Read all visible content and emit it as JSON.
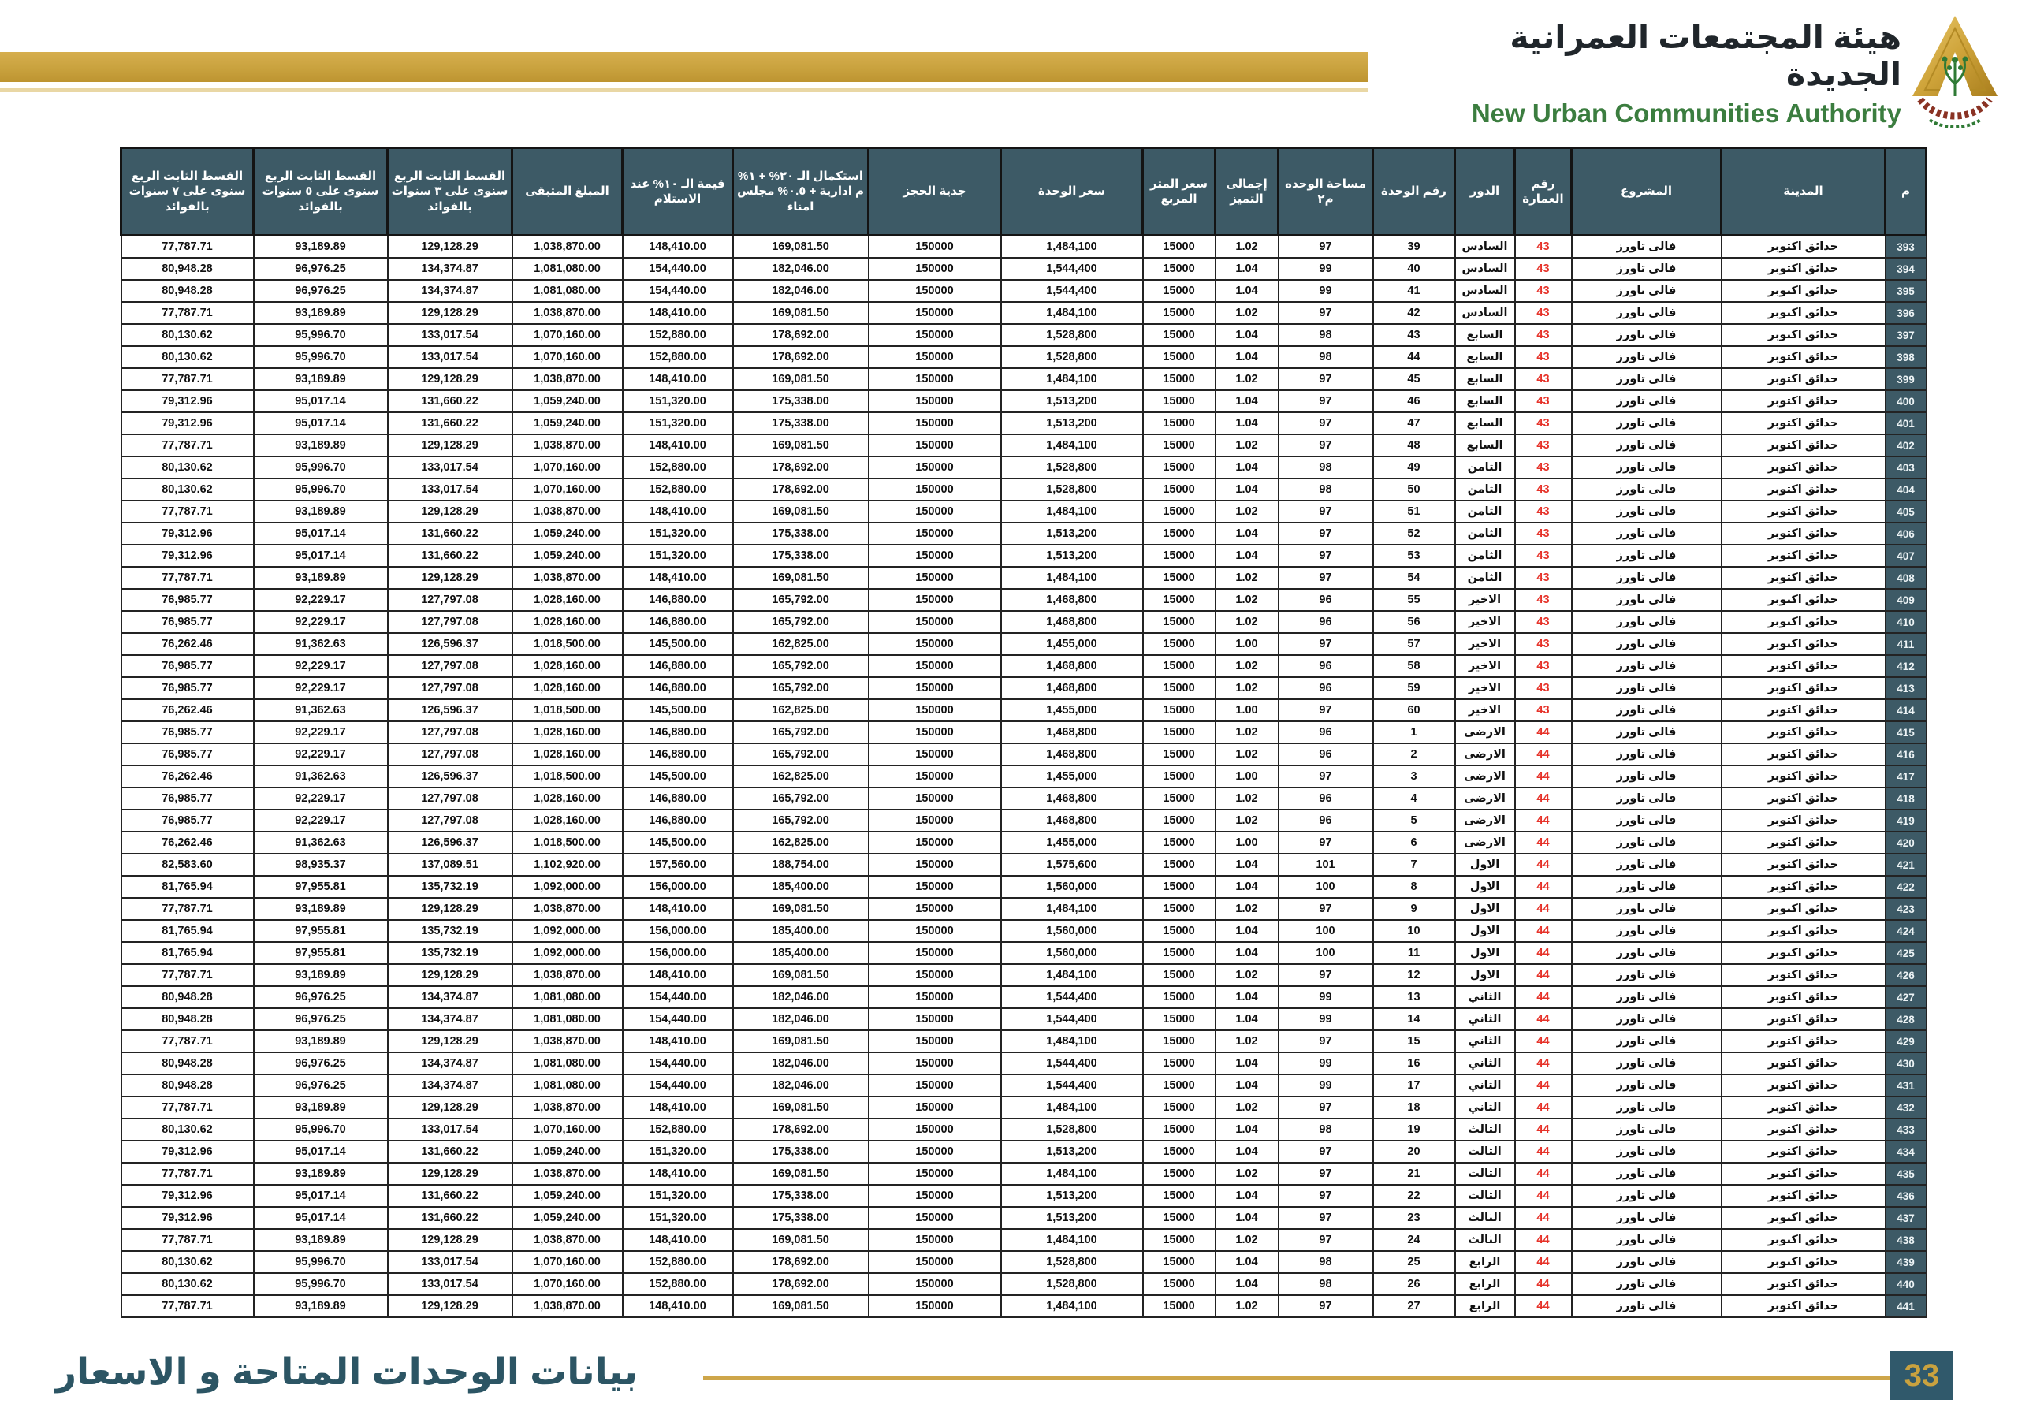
{
  "brand": {
    "title_ar": "هيئة المجتمعات العمرانية الجديدة",
    "title_en": "New Urban Communities Authority",
    "logo": "nuca-pyramid-logo"
  },
  "footer": {
    "caption": "بيانات الوحدات المتاحة و الاسعار",
    "page_number": "33"
  },
  "colors": {
    "gold": "#C9A23E",
    "gold_light": "#E9D7A5",
    "header_teal": "#3D5A66",
    "footer_teal": "#2C5564",
    "badge_teal": "#30596B",
    "building_red": "#E63229",
    "brand_green": "#3B7D3F"
  },
  "table": {
    "columns": [
      {
        "key": "m",
        "label": "م"
      },
      {
        "key": "city",
        "label": "المدينة"
      },
      {
        "key": "project",
        "label": "المشروع"
      },
      {
        "key": "building",
        "label": "رقم العمارة"
      },
      {
        "key": "floor",
        "label": "الدور"
      },
      {
        "key": "unit_no",
        "label": "رقم الوحدة"
      },
      {
        "key": "area",
        "label": "مساحة الوحده م٢"
      },
      {
        "key": "premium",
        "label": "إجمالى التميز"
      },
      {
        "key": "meter_price",
        "label": "سعر المتر المربع"
      },
      {
        "key": "unit_price",
        "label": "سعر الوحدة"
      },
      {
        "key": "deposit",
        "label": "جدية الحجز"
      },
      {
        "key": "completion",
        "label": "استكمال الـ ٢٠% + ١% م ادارية + ٠.٥% مجلس امناء"
      },
      {
        "key": "delivery_10pct",
        "label": "قيمة الـ ١٠% عند الاستلام"
      },
      {
        "key": "remaining",
        "label": "المبلغ المتبقى"
      },
      {
        "key": "inst_3y",
        "label": "القسط الثابت الربع سنوى على ٣ سنوات بالفوائد"
      },
      {
        "key": "inst_5y",
        "label": "القسط الثابت الربع سنوى على ٥ سنوات بالفوائد"
      },
      {
        "key": "inst_7y",
        "label": "القسط الثابت الربع سنوى على ٧ سنوات بالفوائد"
      }
    ],
    "rows": [
      [
        "393",
        "حدائق اكتوبر",
        "فالى تاورز",
        "43",
        "السادس",
        "39",
        "97",
        "1.02",
        "15000",
        "1,484,100",
        "150000",
        "169,081.50",
        "148,410.00",
        "1,038,870.00",
        "129,128.29",
        "93,189.89",
        "77,787.71"
      ],
      [
        "394",
        "حدائق اكتوبر",
        "فالى تاورز",
        "43",
        "السادس",
        "40",
        "99",
        "1.04",
        "15000",
        "1,544,400",
        "150000",
        "182,046.00",
        "154,440.00",
        "1,081,080.00",
        "134,374.87",
        "96,976.25",
        "80,948.28"
      ],
      [
        "395",
        "حدائق اكتوبر",
        "فالى تاورز",
        "43",
        "السادس",
        "41",
        "99",
        "1.04",
        "15000",
        "1,544,400",
        "150000",
        "182,046.00",
        "154,440.00",
        "1,081,080.00",
        "134,374.87",
        "96,976.25",
        "80,948.28"
      ],
      [
        "396",
        "حدائق اكتوبر",
        "فالى تاورز",
        "43",
        "السادس",
        "42",
        "97",
        "1.02",
        "15000",
        "1,484,100",
        "150000",
        "169,081.50",
        "148,410.00",
        "1,038,870.00",
        "129,128.29",
        "93,189.89",
        "77,787.71"
      ],
      [
        "397",
        "حدائق اكتوبر",
        "فالى تاورز",
        "43",
        "السابع",
        "43",
        "98",
        "1.04",
        "15000",
        "1,528,800",
        "150000",
        "178,692.00",
        "152,880.00",
        "1,070,160.00",
        "133,017.54",
        "95,996.70",
        "80,130.62"
      ],
      [
        "398",
        "حدائق اكتوبر",
        "فالى تاورز",
        "43",
        "السابع",
        "44",
        "98",
        "1.04",
        "15000",
        "1,528,800",
        "150000",
        "178,692.00",
        "152,880.00",
        "1,070,160.00",
        "133,017.54",
        "95,996.70",
        "80,130.62"
      ],
      [
        "399",
        "حدائق اكتوبر",
        "فالى تاورز",
        "43",
        "السابع",
        "45",
        "97",
        "1.02",
        "15000",
        "1,484,100",
        "150000",
        "169,081.50",
        "148,410.00",
        "1,038,870.00",
        "129,128.29",
        "93,189.89",
        "77,787.71"
      ],
      [
        "400",
        "حدائق اكتوبر",
        "فالى تاورز",
        "43",
        "السابع",
        "46",
        "97",
        "1.04",
        "15000",
        "1,513,200",
        "150000",
        "175,338.00",
        "151,320.00",
        "1,059,240.00",
        "131,660.22",
        "95,017.14",
        "79,312.96"
      ],
      [
        "401",
        "حدائق اكتوبر",
        "فالى تاورز",
        "43",
        "السابع",
        "47",
        "97",
        "1.04",
        "15000",
        "1,513,200",
        "150000",
        "175,338.00",
        "151,320.00",
        "1,059,240.00",
        "131,660.22",
        "95,017.14",
        "79,312.96"
      ],
      [
        "402",
        "حدائق اكتوبر",
        "فالى تاورز",
        "43",
        "السابع",
        "48",
        "97",
        "1.02",
        "15000",
        "1,484,100",
        "150000",
        "169,081.50",
        "148,410.00",
        "1,038,870.00",
        "129,128.29",
        "93,189.89",
        "77,787.71"
      ],
      [
        "403",
        "حدائق اكتوبر",
        "فالى تاورز",
        "43",
        "الثامن",
        "49",
        "98",
        "1.04",
        "15000",
        "1,528,800",
        "150000",
        "178,692.00",
        "152,880.00",
        "1,070,160.00",
        "133,017.54",
        "95,996.70",
        "80,130.62"
      ],
      [
        "404",
        "حدائق اكتوبر",
        "فالى تاورز",
        "43",
        "الثامن",
        "50",
        "98",
        "1.04",
        "15000",
        "1,528,800",
        "150000",
        "178,692.00",
        "152,880.00",
        "1,070,160.00",
        "133,017.54",
        "95,996.70",
        "80,130.62"
      ],
      [
        "405",
        "حدائق اكتوبر",
        "فالى تاورز",
        "43",
        "الثامن",
        "51",
        "97",
        "1.02",
        "15000",
        "1,484,100",
        "150000",
        "169,081.50",
        "148,410.00",
        "1,038,870.00",
        "129,128.29",
        "93,189.89",
        "77,787.71"
      ],
      [
        "406",
        "حدائق اكتوبر",
        "فالى تاورز",
        "43",
        "الثامن",
        "52",
        "97",
        "1.04",
        "15000",
        "1,513,200",
        "150000",
        "175,338.00",
        "151,320.00",
        "1,059,240.00",
        "131,660.22",
        "95,017.14",
        "79,312.96"
      ],
      [
        "407",
        "حدائق اكتوبر",
        "فالى تاورز",
        "43",
        "الثامن",
        "53",
        "97",
        "1.04",
        "15000",
        "1,513,200",
        "150000",
        "175,338.00",
        "151,320.00",
        "1,059,240.00",
        "131,660.22",
        "95,017.14",
        "79,312.96"
      ],
      [
        "408",
        "حدائق اكتوبر",
        "فالى تاورز",
        "43",
        "الثامن",
        "54",
        "97",
        "1.02",
        "15000",
        "1,484,100",
        "150000",
        "169,081.50",
        "148,410.00",
        "1,038,870.00",
        "129,128.29",
        "93,189.89",
        "77,787.71"
      ],
      [
        "409",
        "حدائق اكتوبر",
        "فالى تاورز",
        "43",
        "الاخير",
        "55",
        "96",
        "1.02",
        "15000",
        "1,468,800",
        "150000",
        "165,792.00",
        "146,880.00",
        "1,028,160.00",
        "127,797.08",
        "92,229.17",
        "76,985.77"
      ],
      [
        "410",
        "حدائق اكتوبر",
        "فالى تاورز",
        "43",
        "الاخير",
        "56",
        "96",
        "1.02",
        "15000",
        "1,468,800",
        "150000",
        "165,792.00",
        "146,880.00",
        "1,028,160.00",
        "127,797.08",
        "92,229.17",
        "76,985.77"
      ],
      [
        "411",
        "حدائق اكتوبر",
        "فالى تاورز",
        "43",
        "الاخير",
        "57",
        "97",
        "1.00",
        "15000",
        "1,455,000",
        "150000",
        "162,825.00",
        "145,500.00",
        "1,018,500.00",
        "126,596.37",
        "91,362.63",
        "76,262.46"
      ],
      [
        "412",
        "حدائق اكتوبر",
        "فالى تاورز",
        "43",
        "الاخير",
        "58",
        "96",
        "1.02",
        "15000",
        "1,468,800",
        "150000",
        "165,792.00",
        "146,880.00",
        "1,028,160.00",
        "127,797.08",
        "92,229.17",
        "76,985.77"
      ],
      [
        "413",
        "حدائق اكتوبر",
        "فالى تاورز",
        "43",
        "الاخير",
        "59",
        "96",
        "1.02",
        "15000",
        "1,468,800",
        "150000",
        "165,792.00",
        "146,880.00",
        "1,028,160.00",
        "127,797.08",
        "92,229.17",
        "76,985.77"
      ],
      [
        "414",
        "حدائق اكتوبر",
        "فالى تاورز",
        "43",
        "الاخير",
        "60",
        "97",
        "1.00",
        "15000",
        "1,455,000",
        "150000",
        "162,825.00",
        "145,500.00",
        "1,018,500.00",
        "126,596.37",
        "91,362.63",
        "76,262.46"
      ],
      [
        "415",
        "حدائق اكتوبر",
        "فالى تاورز",
        "44",
        "الارضى",
        "1",
        "96",
        "1.02",
        "15000",
        "1,468,800",
        "150000",
        "165,792.00",
        "146,880.00",
        "1,028,160.00",
        "127,797.08",
        "92,229.17",
        "76,985.77"
      ],
      [
        "416",
        "حدائق اكتوبر",
        "فالى تاورز",
        "44",
        "الارضى",
        "2",
        "96",
        "1.02",
        "15000",
        "1,468,800",
        "150000",
        "165,792.00",
        "146,880.00",
        "1,028,160.00",
        "127,797.08",
        "92,229.17",
        "76,985.77"
      ],
      [
        "417",
        "حدائق اكتوبر",
        "فالى تاورز",
        "44",
        "الارضى",
        "3",
        "97",
        "1.00",
        "15000",
        "1,455,000",
        "150000",
        "162,825.00",
        "145,500.00",
        "1,018,500.00",
        "126,596.37",
        "91,362.63",
        "76,262.46"
      ],
      [
        "418",
        "حدائق اكتوبر",
        "فالى تاورز",
        "44",
        "الارضى",
        "4",
        "96",
        "1.02",
        "15000",
        "1,468,800",
        "150000",
        "165,792.00",
        "146,880.00",
        "1,028,160.00",
        "127,797.08",
        "92,229.17",
        "76,985.77"
      ],
      [
        "419",
        "حدائق اكتوبر",
        "فالى تاورز",
        "44",
        "الارضى",
        "5",
        "96",
        "1.02",
        "15000",
        "1,468,800",
        "150000",
        "165,792.00",
        "146,880.00",
        "1,028,160.00",
        "127,797.08",
        "92,229.17",
        "76,985.77"
      ],
      [
        "420",
        "حدائق اكتوبر",
        "فالى تاورز",
        "44",
        "الارضى",
        "6",
        "97",
        "1.00",
        "15000",
        "1,455,000",
        "150000",
        "162,825.00",
        "145,500.00",
        "1,018,500.00",
        "126,596.37",
        "91,362.63",
        "76,262.46"
      ],
      [
        "421",
        "حدائق اكتوبر",
        "فالى تاورز",
        "44",
        "الاول",
        "7",
        "101",
        "1.04",
        "15000",
        "1,575,600",
        "150000",
        "188,754.00",
        "157,560.00",
        "1,102,920.00",
        "137,089.51",
        "98,935.37",
        "82,583.60"
      ],
      [
        "422",
        "حدائق اكتوبر",
        "فالى تاورز",
        "44",
        "الاول",
        "8",
        "100",
        "1.04",
        "15000",
        "1,560,000",
        "150000",
        "185,400.00",
        "156,000.00",
        "1,092,000.00",
        "135,732.19",
        "97,955.81",
        "81,765.94"
      ],
      [
        "423",
        "حدائق اكتوبر",
        "فالى تاورز",
        "44",
        "الاول",
        "9",
        "97",
        "1.02",
        "15000",
        "1,484,100",
        "150000",
        "169,081.50",
        "148,410.00",
        "1,038,870.00",
        "129,128.29",
        "93,189.89",
        "77,787.71"
      ],
      [
        "424",
        "حدائق اكتوبر",
        "فالى تاورز",
        "44",
        "الاول",
        "10",
        "100",
        "1.04",
        "15000",
        "1,560,000",
        "150000",
        "185,400.00",
        "156,000.00",
        "1,092,000.00",
        "135,732.19",
        "97,955.81",
        "81,765.94"
      ],
      [
        "425",
        "حدائق اكتوبر",
        "فالى تاورز",
        "44",
        "الاول",
        "11",
        "100",
        "1.04",
        "15000",
        "1,560,000",
        "150000",
        "185,400.00",
        "156,000.00",
        "1,092,000.00",
        "135,732.19",
        "97,955.81",
        "81,765.94"
      ],
      [
        "426",
        "حدائق اكتوبر",
        "فالى تاورز",
        "44",
        "الاول",
        "12",
        "97",
        "1.02",
        "15000",
        "1,484,100",
        "150000",
        "169,081.50",
        "148,410.00",
        "1,038,870.00",
        "129,128.29",
        "93,189.89",
        "77,787.71"
      ],
      [
        "427",
        "حدائق اكتوبر",
        "فالى تاورز",
        "44",
        "الثاني",
        "13",
        "99",
        "1.04",
        "15000",
        "1,544,400",
        "150000",
        "182,046.00",
        "154,440.00",
        "1,081,080.00",
        "134,374.87",
        "96,976.25",
        "80,948.28"
      ],
      [
        "428",
        "حدائق اكتوبر",
        "فالى تاورز",
        "44",
        "الثاني",
        "14",
        "99",
        "1.04",
        "15000",
        "1,544,400",
        "150000",
        "182,046.00",
        "154,440.00",
        "1,081,080.00",
        "134,374.87",
        "96,976.25",
        "80,948.28"
      ],
      [
        "429",
        "حدائق اكتوبر",
        "فالى تاورز",
        "44",
        "الثاني",
        "15",
        "97",
        "1.02",
        "15000",
        "1,484,100",
        "150000",
        "169,081.50",
        "148,410.00",
        "1,038,870.00",
        "129,128.29",
        "93,189.89",
        "77,787.71"
      ],
      [
        "430",
        "حدائق اكتوبر",
        "فالى تاورز",
        "44",
        "الثاني",
        "16",
        "99",
        "1.04",
        "15000",
        "1,544,400",
        "150000",
        "182,046.00",
        "154,440.00",
        "1,081,080.00",
        "134,374.87",
        "96,976.25",
        "80,948.28"
      ],
      [
        "431",
        "حدائق اكتوبر",
        "فالى تاورز",
        "44",
        "الثاني",
        "17",
        "99",
        "1.04",
        "15000",
        "1,544,400",
        "150000",
        "182,046.00",
        "154,440.00",
        "1,081,080.00",
        "134,374.87",
        "96,976.25",
        "80,948.28"
      ],
      [
        "432",
        "حدائق اكتوبر",
        "فالى تاورز",
        "44",
        "الثاني",
        "18",
        "97",
        "1.02",
        "15000",
        "1,484,100",
        "150000",
        "169,081.50",
        "148,410.00",
        "1,038,870.00",
        "129,128.29",
        "93,189.89",
        "77,787.71"
      ],
      [
        "433",
        "حدائق اكتوبر",
        "فالى تاورز",
        "44",
        "الثالث",
        "19",
        "98",
        "1.04",
        "15000",
        "1,528,800",
        "150000",
        "178,692.00",
        "152,880.00",
        "1,070,160.00",
        "133,017.54",
        "95,996.70",
        "80,130.62"
      ],
      [
        "434",
        "حدائق اكتوبر",
        "فالى تاورز",
        "44",
        "الثالث",
        "20",
        "97",
        "1.04",
        "15000",
        "1,513,200",
        "150000",
        "175,338.00",
        "151,320.00",
        "1,059,240.00",
        "131,660.22",
        "95,017.14",
        "79,312.96"
      ],
      [
        "435",
        "حدائق اكتوبر",
        "فالى تاورز",
        "44",
        "الثالث",
        "21",
        "97",
        "1.02",
        "15000",
        "1,484,100",
        "150000",
        "169,081.50",
        "148,410.00",
        "1,038,870.00",
        "129,128.29",
        "93,189.89",
        "77,787.71"
      ],
      [
        "436",
        "حدائق اكتوبر",
        "فالى تاورز",
        "44",
        "الثالث",
        "22",
        "97",
        "1.04",
        "15000",
        "1,513,200",
        "150000",
        "175,338.00",
        "151,320.00",
        "1,059,240.00",
        "131,660.22",
        "95,017.14",
        "79,312.96"
      ],
      [
        "437",
        "حدائق اكتوبر",
        "فالى تاورز",
        "44",
        "الثالث",
        "23",
        "97",
        "1.04",
        "15000",
        "1,513,200",
        "150000",
        "175,338.00",
        "151,320.00",
        "1,059,240.00",
        "131,660.22",
        "95,017.14",
        "79,312.96"
      ],
      [
        "438",
        "حدائق اكتوبر",
        "فالى تاورز",
        "44",
        "الثالث",
        "24",
        "97",
        "1.02",
        "15000",
        "1,484,100",
        "150000",
        "169,081.50",
        "148,410.00",
        "1,038,870.00",
        "129,128.29",
        "93,189.89",
        "77,787.71"
      ],
      [
        "439",
        "حدائق اكتوبر",
        "فالى تاورز",
        "44",
        "الرابع",
        "25",
        "98",
        "1.04",
        "15000",
        "1,528,800",
        "150000",
        "178,692.00",
        "152,880.00",
        "1,070,160.00",
        "133,017.54",
        "95,996.70",
        "80,130.62"
      ],
      [
        "440",
        "حدائق اكتوبر",
        "فالى تاورز",
        "44",
        "الرابع",
        "26",
        "98",
        "1.04",
        "15000",
        "1,528,800",
        "150000",
        "178,692.00",
        "152,880.00",
        "1,070,160.00",
        "133,017.54",
        "95,996.70",
        "80,130.62"
      ],
      [
        "441",
        "حدائق اكتوبر",
        "فالى تاورز",
        "44",
        "الرابع",
        "27",
        "97",
        "1.02",
        "15000",
        "1,484,100",
        "150000",
        "169,081.50",
        "148,410.00",
        "1,038,870.00",
        "129,128.29",
        "93,189.89",
        "77,787.71"
      ]
    ]
  }
}
